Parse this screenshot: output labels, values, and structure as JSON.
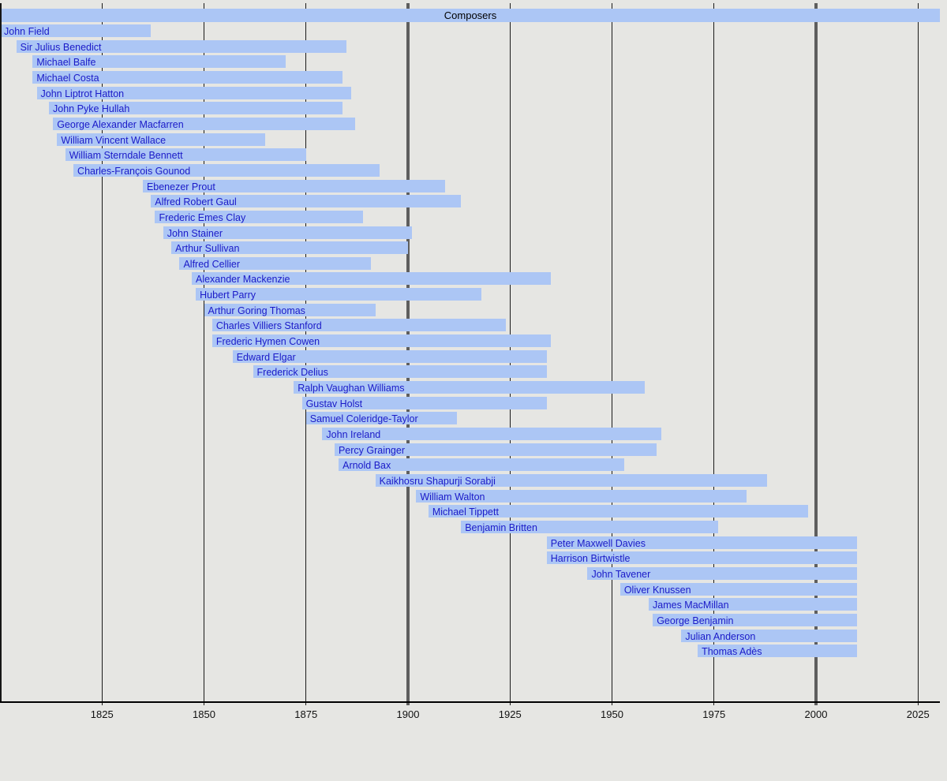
{
  "chart_data": {
    "type": "bar",
    "subtype": "timeline-lifespan-gantt",
    "title": "Composers",
    "axis": {
      "unit": "year",
      "start": 1800,
      "end": 2030,
      "tick_labels": [
        1825,
        1850,
        1875,
        1900,
        1925,
        1950,
        1975,
        2000,
        2025
      ],
      "major_gridlines": [
        1900,
        2000
      ],
      "tick_position": "bottom",
      "grid": "on"
    },
    "present_year": 2010,
    "composers": [
      {
        "name": "John Field",
        "start": 1782,
        "end": 1837
      },
      {
        "name": "Sir Julius Benedict",
        "start": 1804,
        "end": 1885
      },
      {
        "name": "Michael Balfe",
        "start": 1808,
        "end": 1870
      },
      {
        "name": "Michael Costa",
        "start": 1808,
        "end": 1884
      },
      {
        "name": "John Liptrot Hatton",
        "start": 1809,
        "end": 1886
      },
      {
        "name": "John Pyke Hullah",
        "start": 1812,
        "end": 1884
      },
      {
        "name": "George Alexander Macfarren",
        "start": 1813,
        "end": 1887
      },
      {
        "name": "William Vincent Wallace",
        "start": 1814,
        "end": 1865
      },
      {
        "name": "William Sterndale Bennett",
        "start": 1816,
        "end": 1875
      },
      {
        "name": "Charles-François Gounod",
        "start": 1818,
        "end": 1893
      },
      {
        "name": "Ebenezer Prout",
        "start": 1835,
        "end": 1909
      },
      {
        "name": "Alfred Robert Gaul",
        "start": 1837,
        "end": 1913
      },
      {
        "name": "Frederic Emes Clay",
        "start": 1838,
        "end": 1889
      },
      {
        "name": "John Stainer",
        "start": 1840,
        "end": 1901
      },
      {
        "name": "Arthur Sullivan",
        "start": 1842,
        "end": 1900
      },
      {
        "name": "Alfred Cellier",
        "start": 1844,
        "end": 1891
      },
      {
        "name": "Alexander Mackenzie",
        "start": 1847,
        "end": 1935
      },
      {
        "name": "Hubert Parry",
        "start": 1848,
        "end": 1918
      },
      {
        "name": "Arthur Goring Thomas",
        "start": 1850,
        "end": 1892
      },
      {
        "name": "Charles Villiers Stanford",
        "start": 1852,
        "end": 1924
      },
      {
        "name": "Frederic Hymen Cowen",
        "start": 1852,
        "end": 1935
      },
      {
        "name": "Edward Elgar",
        "start": 1857,
        "end": 1934
      },
      {
        "name": "Frederick Delius",
        "start": 1862,
        "end": 1934
      },
      {
        "name": "Ralph Vaughan Williams",
        "start": 1872,
        "end": 1958
      },
      {
        "name": "Gustav Holst",
        "start": 1874,
        "end": 1934
      },
      {
        "name": "Samuel Coleridge-Taylor",
        "start": 1875,
        "end": 1912
      },
      {
        "name": "John Ireland",
        "start": 1879,
        "end": 1962
      },
      {
        "name": "Percy Grainger",
        "start": 1882,
        "end": 1961
      },
      {
        "name": "Arnold Bax",
        "start": 1883,
        "end": 1953
      },
      {
        "name": "Kaikhosru Shapurji Sorabji",
        "start": 1892,
        "end": 1988
      },
      {
        "name": "William Walton",
        "start": 1902,
        "end": 1983
      },
      {
        "name": "Michael Tippett",
        "start": 1905,
        "end": 1998
      },
      {
        "name": "Benjamin Britten",
        "start": 1913,
        "end": 1976
      },
      {
        "name": "Peter Maxwell Davies",
        "start": 1934,
        "end": 2010
      },
      {
        "name": "Harrison Birtwistle",
        "start": 1934,
        "end": 2010
      },
      {
        "name": "John Tavener",
        "start": 1944,
        "end": 2010
      },
      {
        "name": "Oliver Knussen",
        "start": 1952,
        "end": 2010
      },
      {
        "name": "James MacMillan",
        "start": 1959,
        "end": 2010
      },
      {
        "name": "George Benjamin",
        "start": 1960,
        "end": 2010
      },
      {
        "name": "Julian Anderson",
        "start": 1967,
        "end": 2010
      },
      {
        "name": "Thomas Adès",
        "start": 1971,
        "end": 2010
      }
    ],
    "colors": {
      "bar": "#acc6f5",
      "label": "#1a1ac8",
      "background": "#e6e6e3",
      "grid": "#1a1a1a",
      "grid_major": "#5e5e5e",
      "header_text": "#000000",
      "axis_text": "#111111"
    }
  }
}
